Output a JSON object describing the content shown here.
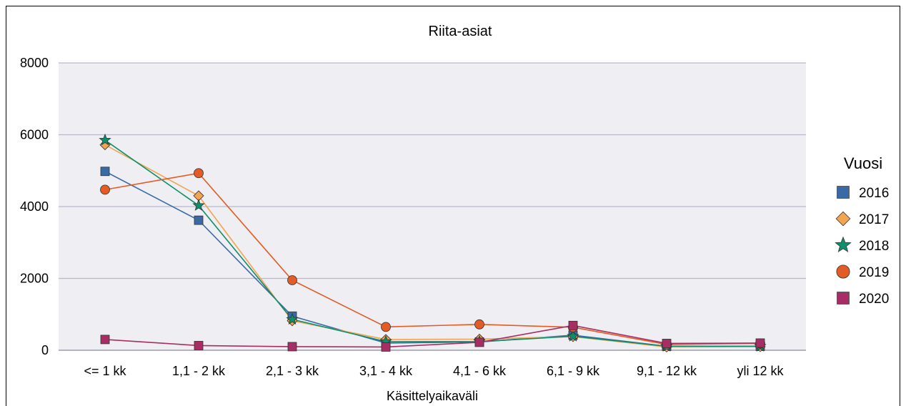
{
  "chart_data": {
    "type": "line",
    "title": "Riita-asiat",
    "xlabel": "Käsittelyaikaväli",
    "ylabel": "",
    "categories": [
      "<= 1 kk",
      "1,1 - 2 kk",
      "2,1 - 3 kk",
      "3,1 - 4 kk",
      "4,1 - 6 kk",
      "6,1 - 9 kk",
      "9,1 - 12 kk",
      "yli 12 kk"
    ],
    "ylim": [
      0,
      8000
    ],
    "yticks": [
      "0",
      "2000",
      "4000",
      "6000",
      "8000"
    ],
    "grid": true,
    "legend": {
      "title": "Vuosi",
      "placement": "right"
    },
    "series": [
      {
        "name": "2016",
        "color": "#3a6aa6",
        "marker": "square",
        "values": [
          4980,
          3620,
          950,
          200,
          230,
          420,
          110,
          110
        ]
      },
      {
        "name": "2017",
        "color": "#f2a450",
        "marker": "diamond",
        "values": [
          5720,
          4300,
          820,
          300,
          310,
          380,
          90,
          100
        ]
      },
      {
        "name": "2018",
        "color": "#0d8f6b",
        "marker": "star",
        "values": [
          5850,
          4030,
          860,
          240,
          240,
          390,
          110,
          110
        ]
      },
      {
        "name": "2019",
        "color": "#e35b25",
        "marker": "circle",
        "values": [
          4470,
          4930,
          1950,
          650,
          720,
          640,
          160,
          190
        ]
      },
      {
        "name": "2020",
        "color": "#a62e64",
        "marker": "square",
        "values": [
          300,
          130,
          100,
          90,
          220,
          690,
          190,
          200
        ]
      }
    ]
  }
}
